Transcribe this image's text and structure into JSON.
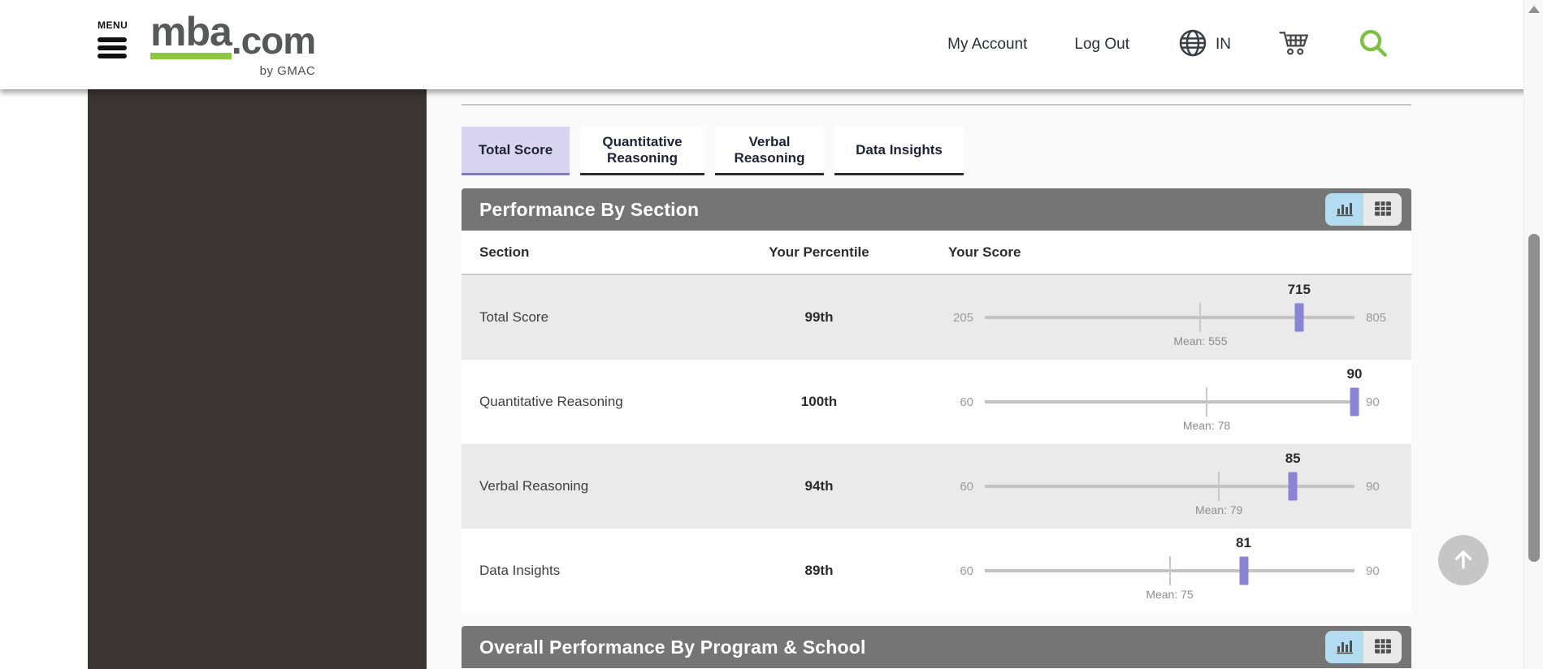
{
  "header": {
    "menu_label": "MENU",
    "logo_main": "mba",
    "logo_suffix": ".com",
    "logo_byline": "by GMAC",
    "my_account": "My Account",
    "log_out": "Log Out",
    "locale": "IN"
  },
  "tabs": [
    {
      "label": "Total Score",
      "active": true
    },
    {
      "label": "Quantitative Reasoning",
      "active": false
    },
    {
      "label": "Verbal Reasoning",
      "active": false
    },
    {
      "label": "Data Insights",
      "active": false
    }
  ],
  "performance_panel": {
    "title": "Performance By Section",
    "columns": [
      "Section",
      "Your Percentile",
      "Your Score"
    ],
    "rows": [
      {
        "section": "Total Score",
        "percentile": "99th",
        "min": 205,
        "max": 805,
        "mean": 555,
        "score": 715,
        "mean_label": "Mean: 555"
      },
      {
        "section": "Quantitative Reasoning",
        "percentile": "100th",
        "min": 60,
        "max": 90,
        "mean": 78,
        "score": 90,
        "mean_label": "Mean: 78"
      },
      {
        "section": "Verbal Reasoning",
        "percentile": "94th",
        "min": 60,
        "max": 90,
        "mean": 79,
        "score": 85,
        "mean_label": "Mean: 79"
      },
      {
        "section": "Data Insights",
        "percentile": "89th",
        "min": 60,
        "max": 90,
        "mean": 75,
        "score": 81,
        "mean_label": "Mean: 75"
      }
    ]
  },
  "overall_panel": {
    "title": "Overall Performance By Program & School"
  },
  "chart_data": {
    "type": "table",
    "title": "Performance By Section",
    "columns": [
      "Section",
      "Your Percentile",
      "Your Score"
    ],
    "rows": [
      {
        "section": "Total Score",
        "percentile": "99th",
        "score": 715,
        "scale": [
          205,
          805
        ],
        "mean": 555
      },
      {
        "section": "Quantitative Reasoning",
        "percentile": "100th",
        "score": 90,
        "scale": [
          60,
          90
        ],
        "mean": 78
      },
      {
        "section": "Verbal Reasoning",
        "percentile": "94th",
        "score": 85,
        "scale": [
          60,
          90
        ],
        "mean": 79
      },
      {
        "section": "Data Insights",
        "percentile": "89th",
        "score": 81,
        "scale": [
          60,
          90
        ],
        "mean": 75
      }
    ]
  },
  "colors": {
    "accent_purple": "#8b83d6",
    "accent_green": "#8dc63f",
    "search_green": "#7cc142",
    "panel_header_bg": "#757575",
    "active_tab_bg": "#d9d5f1",
    "toggle_active_bg": "#b4dcf0",
    "row_alt_bg": "#eaeaea",
    "sidebar_bg": "#3a3533"
  }
}
